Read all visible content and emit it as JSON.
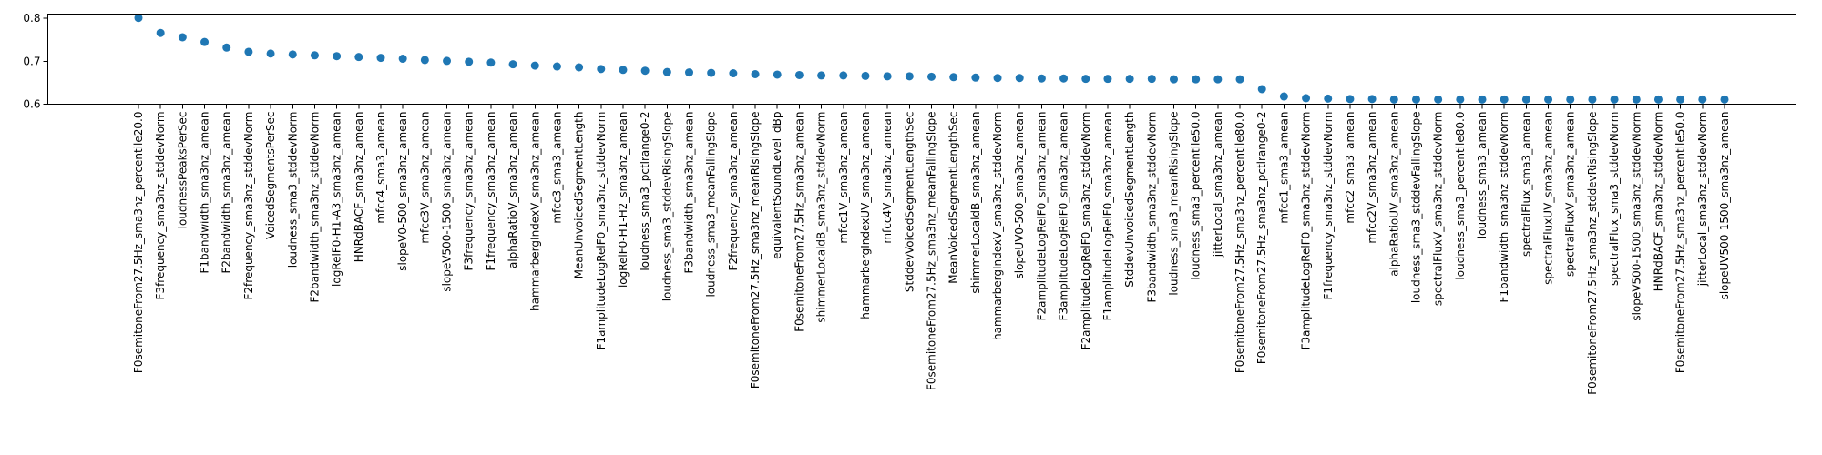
{
  "chart_data": {
    "type": "scatter",
    "title": "",
    "xlabel": "",
    "ylabel": "",
    "ylim": [
      0.6,
      0.81
    ],
    "yticks": [
      "0.6",
      "0.7",
      "0.8"
    ],
    "grid": false,
    "legend": "none",
    "marker_color": "#1f77b4",
    "categories": [
      "F0semitoneFrom27.5Hz_sma3nz_percentile20.0",
      "F3frequency_sma3nz_stddevNorm",
      "loudnessPeaksPerSec",
      "F1bandwidth_sma3nz_amean",
      "F2bandwidth_sma3nz_amean",
      "F2frequency_sma3nz_stddevNorm",
      "VoicedSegmentsPerSec",
      "loudness_sma3_stddevNorm",
      "F2bandwidth_sma3nz_stddevNorm",
      "logRelF0-H1-A3_sma3nz_amean",
      "HNRdBACF_sma3nz_amean",
      "mfcc4_sma3_amean",
      "slopeV0-500_sma3nz_amean",
      "mfcc3V_sma3nz_amean",
      "slopeV500-1500_sma3nz_amean",
      "F3frequency_sma3nz_amean",
      "F1frequency_sma3nz_amean",
      "alphaRatioV_sma3nz_amean",
      "hammarbergIndexV_sma3nz_amean",
      "mfcc3_sma3_amean",
      "MeanUnvoicedSegmentLength",
      "F1amplitudeLogRelF0_sma3nz_stddevNorm",
      "logRelF0-H1-H2_sma3nz_amean",
      "loudness_sma3_pctlrange0-2",
      "loudness_sma3_stddevRisingSlope",
      "F3bandwidth_sma3nz_amean",
      "loudness_sma3_meanFallingSlope",
      "F2frequency_sma3nz_amean",
      "F0semitoneFrom27.5Hz_sma3nz_meanRisingSlope",
      "equivalentSoundLevel_dBp",
      "F0semitoneFrom27.5Hz_sma3nz_amean",
      "shimmerLocaldB_sma3nz_stddevNorm",
      "mfcc1V_sma3nz_amean",
      "hammarbergIndexUV_sma3nz_amean",
      "mfcc4V_sma3nz_amean",
      "StddevVoicedSegmentLengthSec",
      "F0semitoneFrom27.5Hz_sma3nz_meanFallingSlope",
      "MeanVoicedSegmentLengthSec",
      "shimmerLocaldB_sma3nz_amean",
      "hammarbergIndexV_sma3nz_stddevNorm",
      "slopeUV0-500_sma3nz_amean",
      "F2amplitudeLogRelF0_sma3nz_amean",
      "F3amplitudeLogRelF0_sma3nz_amean",
      "F2amplitudeLogRelF0_sma3nz_stddevNorm",
      "F1amplitudeLogRelF0_sma3nz_amean",
      "StddevUnvoicedSegmentLength",
      "F3bandwidth_sma3nz_stddevNorm",
      "loudness_sma3_meanRisingSlope",
      "loudness_sma3_percentile50.0",
      "jitterLocal_sma3nz_amean",
      "F0semitoneFrom27.5Hz_sma3nz_percentile80.0",
      "F0semitoneFrom27.5Hz_sma3nz_pctlrange0-2",
      "mfcc1_sma3_amean",
      "F3amplitudeLogRelF0_sma3nz_stddevNorm",
      "F1frequency_sma3nz_stddevNorm",
      "mfcc2_sma3_amean",
      "mfcc2V_sma3nz_amean",
      "alphaRatioUV_sma3nz_amean",
      "loudness_sma3_stddevFallingSlope",
      "spectralFluxV_sma3nz_stddevNorm",
      "loudness_sma3_percentile80.0",
      "loudness_sma3_amean",
      "F1bandwidth_sma3nz_stddevNorm",
      "spectralFlux_sma3_amean",
      "spectralFluxUV_sma3nz_amean",
      "spectralFluxV_sma3nz_amean",
      "F0semitoneFrom27.5Hz_sma3nz_stddevRisingSlope",
      "spectralFlux_sma3_stddevNorm",
      "slopeV500-1500_sma3nz_stddevNorm",
      "HNRdBACF_sma3nz_stddevNorm",
      "F0semitoneFrom27.5Hz_sma3nz_percentile50.0",
      "jitterLocal_sma3nz_stddevNorm",
      "slopeUV500-1500_sma3nz_amean"
    ],
    "values": [
      0.801,
      0.766,
      0.756,
      0.745,
      0.732,
      0.722,
      0.718,
      0.716,
      0.714,
      0.712,
      0.71,
      0.708,
      0.706,
      0.703,
      0.701,
      0.699,
      0.697,
      0.693,
      0.69,
      0.688,
      0.686,
      0.682,
      0.68,
      0.678,
      0.675,
      0.674,
      0.673,
      0.672,
      0.67,
      0.669,
      0.668,
      0.667,
      0.667,
      0.666,
      0.665,
      0.665,
      0.664,
      0.663,
      0.662,
      0.661,
      0.661,
      0.66,
      0.66,
      0.659,
      0.659,
      0.659,
      0.659,
      0.658,
      0.658,
      0.658,
      0.658,
      0.635,
      0.618,
      0.614,
      0.613,
      0.612,
      0.612,
      0.611,
      0.611,
      0.611,
      0.611,
      0.611,
      0.611,
      0.611,
      0.611,
      0.611,
      0.611,
      0.611,
      0.611,
      0.611,
      0.611,
      0.611,
      0.611
    ]
  }
}
